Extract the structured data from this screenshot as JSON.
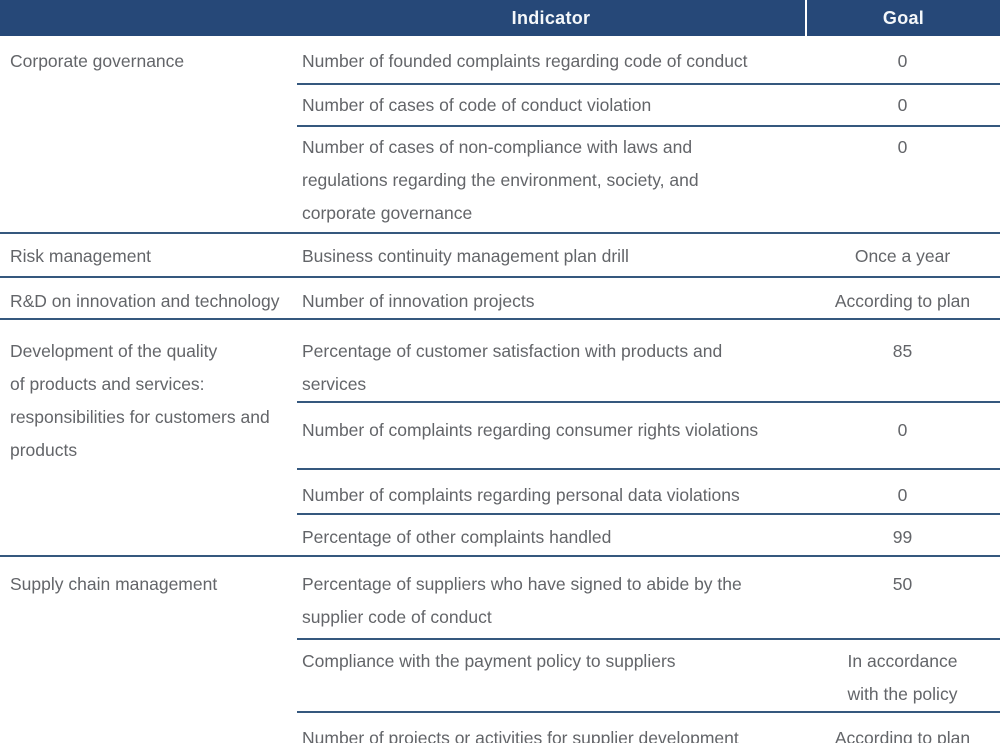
{
  "colors": {
    "header_background": "#264878",
    "header_text": "#f4f7fa",
    "row_separator": "#35587e",
    "bottom_border": "#24476f",
    "body_text": "#636569"
  },
  "table": {
    "header": {
      "indicator": "Indicator",
      "goal": "Goal"
    },
    "groups": [
      {
        "category": "Corporate governance",
        "rows": [
          {
            "indicator": "Number of founded complaints regarding code of conduct",
            "goal": "0"
          },
          {
            "indicator": "Number of cases of code of conduct violation",
            "goal": "0"
          },
          {
            "indicator": "Number of cases of non-compliance with laws and\nregulations regarding the environment, society, and\ncorporate governance",
            "goal": "0"
          }
        ]
      },
      {
        "category": "Risk management",
        "rows": [
          {
            "indicator": "Business continuity management plan drill",
            "goal": "Once a year"
          }
        ]
      },
      {
        "category": "R&D on innovation and technology",
        "rows": [
          {
            "indicator": "Number of innovation projects",
            "goal": "According to plan"
          }
        ]
      },
      {
        "category": "Development of the quality\nof products and services:\nresponsibilities for customers and\nproducts",
        "rows": [
          {
            "indicator": "Percentage of customer satisfaction with products and\nservices",
            "goal": "85"
          },
          {
            "indicator": "Number of complaints regarding consumer rights violations",
            "goal": "0"
          },
          {
            "indicator": "Number of complaints regarding personal data violations",
            "goal": "0"
          },
          {
            "indicator": "Percentage of other complaints handled",
            "goal": "99"
          }
        ]
      },
      {
        "category": "Supply chain management",
        "rows": [
          {
            "indicator": "Percentage of suppliers who have signed to abide by the\nsupplier code of conduct",
            "goal": "50"
          },
          {
            "indicator": "Compliance with the payment policy to suppliers",
            "goal": "In accordance\nwith the policy"
          },
          {
            "indicator": "Number of projects or activities for supplier development",
            "goal": "According to plan"
          }
        ]
      }
    ]
  }
}
